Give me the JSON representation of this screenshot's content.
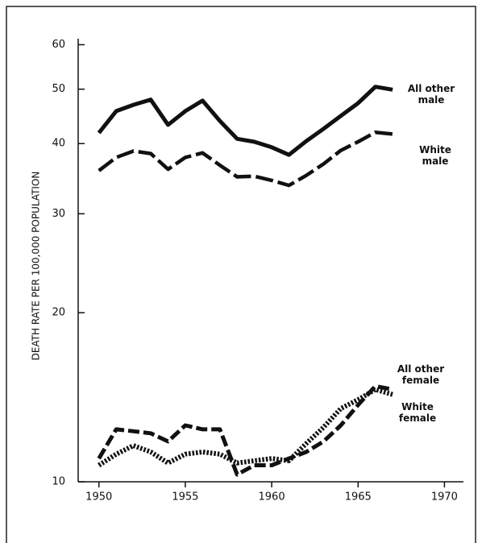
{
  "chart_data": {
    "type": "line",
    "y_label": "DEATH RATE PER 100,000 POPULATION",
    "x": [
      1950,
      1951,
      1952,
      1953,
      1954,
      1955,
      1956,
      1957,
      1958,
      1959,
      1960,
      1961,
      1962,
      1963,
      1964,
      1965,
      1966,
      1967
    ],
    "series": [
      {
        "name": "All other male",
        "color": "#111111",
        "style": "solid",
        "values": [
          41.8,
          45.7,
          46.9,
          47.9,
          43.2,
          45.7,
          47.7,
          43.9,
          40.8,
          40.3,
          39.4,
          38.2,
          40.4,
          42.5,
          44.8,
          47.2,
          50.5,
          49.9
        ]
      },
      {
        "name": "White male",
        "color": "#111111",
        "style": "longdash",
        "values": [
          35.8,
          37.8,
          38.8,
          38.4,
          36.0,
          37.8,
          38.5,
          36.6,
          34.9,
          35.0,
          34.4,
          33.7,
          35.1,
          36.8,
          38.9,
          40.3,
          41.9,
          41.6
        ]
      },
      {
        "name": "All other female",
        "color": "#111111",
        "style": "dashed",
        "values": [
          11.0,
          12.4,
          12.3,
          12.2,
          11.8,
          12.6,
          12.4,
          12.4,
          10.3,
          10.7,
          10.7,
          11.0,
          11.3,
          11.8,
          12.6,
          13.7,
          14.8,
          14.6
        ]
      },
      {
        "name": "White female",
        "color": "#111111",
        "style": "dotted",
        "values": [
          10.7,
          11.2,
          11.6,
          11.3,
          10.8,
          11.2,
          11.3,
          11.2,
          10.8,
          10.9,
          11.0,
          10.9,
          11.7,
          12.5,
          13.5,
          14.0,
          14.6,
          14.3
        ]
      }
    ],
    "xlim": [
      1948.8,
      1971.1
    ],
    "xticks": [
      1950,
      1955,
      1960,
      1965,
      1970
    ],
    "ylim": [
      10,
      61.5
    ],
    "yticks": [
      10,
      20,
      30,
      40,
      50,
      60
    ],
    "log_y": true
  }
}
